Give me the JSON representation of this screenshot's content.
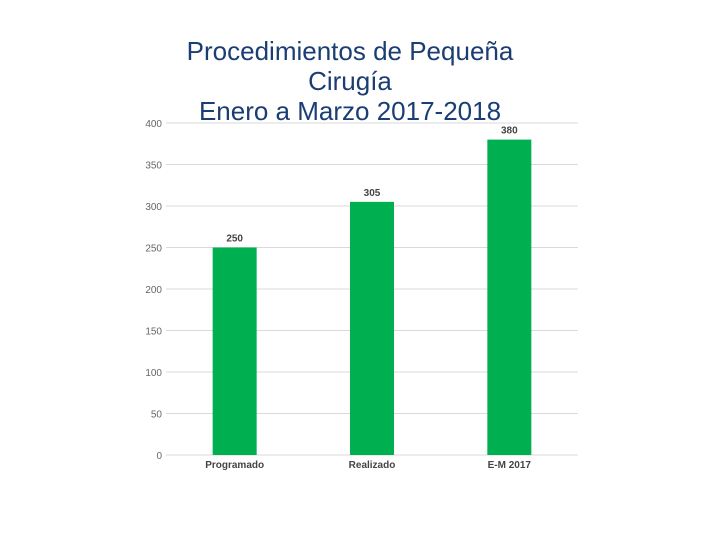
{
  "chart_data": {
    "type": "bar",
    "title_lines": [
      "Procedimientos de Pequeña",
      "Cirugía",
      "Enero a Marzo 2017-2018"
    ],
    "categories": [
      "Programado",
      "Realizado",
      "E-M 2017"
    ],
    "values": [
      250,
      305,
      380
    ],
    "ylim": [
      0,
      400
    ],
    "yticks": [
      "0",
      "50",
      "100",
      "150",
      "200",
      "250",
      "300",
      "350",
      "400"
    ],
    "data_labels": [
      "250",
      "305",
      "380"
    ],
    "grid": true,
    "bar_color": "#00b050",
    "grid_color": "#d9d9d9"
  }
}
